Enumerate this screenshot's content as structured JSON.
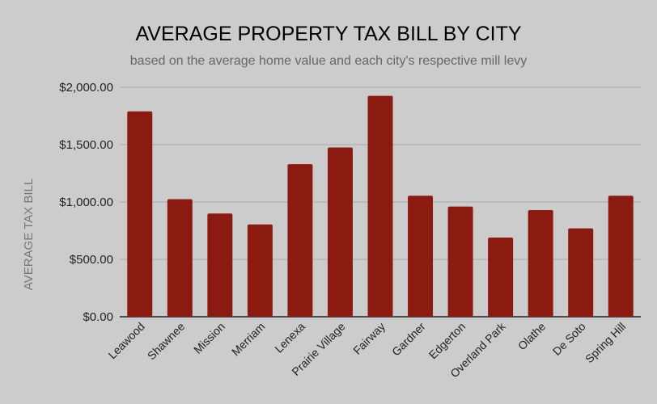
{
  "chart_data": {
    "type": "bar",
    "title": "AVERAGE PROPERTY TAX BILL BY CITY",
    "subtitle": "based on the average home value and each city's respective mill levy",
    "xlabel": "",
    "ylabel": "AVERAGE TAX BILL",
    "ylim": [
      0,
      2000
    ],
    "yticks": [
      "$0.00",
      "$500.00",
      "$1,000.00",
      "$1,500.00",
      "$2,000.00"
    ],
    "ytick_values": [
      0,
      500,
      1000,
      1500,
      2000
    ],
    "grid": true,
    "categories": [
      "Leawood",
      "Shawnee",
      "Mission",
      "Merriam",
      "Lenexa",
      "Prairie Village",
      "Fairway",
      "Gardner",
      "Edgerton",
      "Overland Park",
      "Olathe",
      "De Soto",
      "Spring Hill"
    ],
    "values": [
      1790,
      1025,
      900,
      805,
      1330,
      1475,
      1925,
      1055,
      960,
      690,
      930,
      770,
      1055
    ],
    "colors": {
      "bar": "#8b1a10",
      "background": "#cccccc",
      "grid": "#aaaaaa"
    }
  }
}
